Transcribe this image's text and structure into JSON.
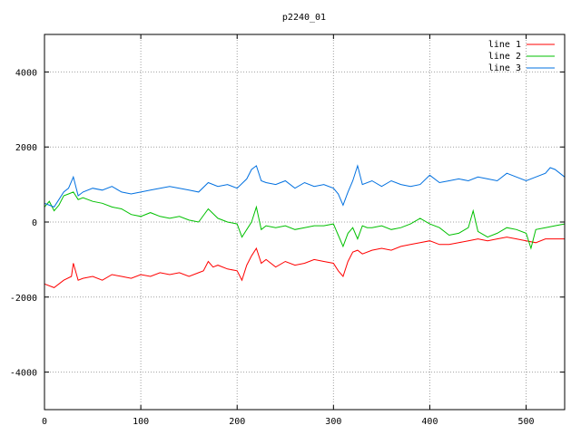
{
  "chart_data": {
    "type": "line",
    "title": "p2240_01",
    "xlabel": "",
    "ylabel": "",
    "xlim": [
      0,
      540
    ],
    "ylim": [
      -5000,
      5000
    ],
    "xticks": [
      0,
      100,
      200,
      300,
      400,
      500
    ],
    "yticks": [
      -4000,
      -2000,
      0,
      2000,
      4000
    ],
    "grid": true,
    "legend_position": "top-right",
    "series": [
      {
        "name": "line 1",
        "color": "#ff0000",
        "x": [
          0,
          10,
          20,
          28,
          30,
          35,
          40,
          50,
          60,
          70,
          80,
          90,
          100,
          110,
          120,
          130,
          140,
          150,
          160,
          165,
          170,
          175,
          180,
          190,
          200,
          205,
          210,
          215,
          220,
          225,
          230,
          240,
          250,
          260,
          270,
          280,
          290,
          300,
          305,
          310,
          315,
          320,
          325,
          330,
          340,
          350,
          360,
          370,
          380,
          390,
          400,
          410,
          420,
          430,
          440,
          450,
          460,
          470,
          480,
          490,
          500,
          510,
          520,
          530,
          540
        ],
        "y": [
          -1650,
          -1750,
          -1550,
          -1450,
          -1100,
          -1550,
          -1500,
          -1450,
          -1550,
          -1400,
          -1450,
          -1500,
          -1400,
          -1450,
          -1350,
          -1400,
          -1350,
          -1450,
          -1350,
          -1300,
          -1050,
          -1200,
          -1150,
          -1250,
          -1300,
          -1550,
          -1150,
          -900,
          -700,
          -1100,
          -1000,
          -1200,
          -1050,
          -1150,
          -1100,
          -1000,
          -1050,
          -1100,
          -1300,
          -1450,
          -1050,
          -800,
          -750,
          -850,
          -750,
          -700,
          -750,
          -650,
          -600,
          -550,
          -500,
          -600,
          -600,
          -550,
          -500,
          -450,
          -500,
          -450,
          -400,
          -450,
          -500,
          -550,
          -450,
          -450,
          -450
        ]
      },
      {
        "name": "line 2",
        "color": "#00c000",
        "x": [
          0,
          5,
          10,
          15,
          20,
          25,
          30,
          35,
          40,
          50,
          60,
          70,
          80,
          90,
          100,
          110,
          120,
          130,
          140,
          150,
          160,
          170,
          180,
          190,
          200,
          205,
          210,
          215,
          220,
          225,
          230,
          240,
          250,
          260,
          270,
          280,
          290,
          300,
          305,
          310,
          315,
          320,
          325,
          330,
          335,
          340,
          350,
          360,
          370,
          380,
          390,
          400,
          410,
          420,
          430,
          440,
          445,
          450,
          460,
          470,
          480,
          490,
          500,
          505,
          510,
          520,
          530,
          540
        ],
        "y": [
          400,
          550,
          300,
          450,
          700,
          750,
          800,
          600,
          650,
          550,
          500,
          400,
          350,
          200,
          150,
          250,
          150,
          100,
          150,
          50,
          0,
          350,
          100,
          0,
          -50,
          -400,
          -200,
          0,
          400,
          -200,
          -100,
          -150,
          -100,
          -200,
          -150,
          -100,
          -100,
          -50,
          -350,
          -650,
          -300,
          -150,
          -450,
          -100,
          -150,
          -150,
          -100,
          -200,
          -150,
          -50,
          100,
          -50,
          -150,
          -350,
          -300,
          -150,
          300,
          -250,
          -400,
          -300,
          -150,
          -200,
          -300,
          -700,
          -200,
          -150,
          -100,
          -50
        ]
      },
      {
        "name": "line 3",
        "color": "#0070e0",
        "x": [
          0,
          5,
          10,
          15,
          20,
          25,
          30,
          35,
          40,
          50,
          60,
          70,
          80,
          90,
          100,
          110,
          120,
          130,
          140,
          150,
          160,
          170,
          180,
          190,
          200,
          210,
          215,
          220,
          225,
          230,
          240,
          250,
          260,
          270,
          280,
          290,
          300,
          305,
          310,
          315,
          320,
          325,
          330,
          340,
          350,
          360,
          370,
          380,
          390,
          400,
          410,
          420,
          430,
          440,
          450,
          460,
          470,
          480,
          490,
          500,
          510,
          520,
          525,
          530,
          540
        ],
        "y": [
          500,
          450,
          400,
          600,
          800,
          900,
          1200,
          700,
          800,
          900,
          850,
          950,
          800,
          750,
          800,
          850,
          900,
          950,
          900,
          850,
          800,
          1050,
          950,
          1000,
          900,
          1150,
          1400,
          1500,
          1100,
          1050,
          1000,
          1100,
          900,
          1050,
          950,
          1000,
          900,
          750,
          450,
          800,
          1100,
          1500,
          1000,
          1100,
          950,
          1100,
          1000,
          950,
          1000,
          1250,
          1050,
          1100,
          1150,
          1100,
          1200,
          1150,
          1100,
          1300,
          1200,
          1100,
          1200,
          1300,
          1450,
          1400,
          1200
        ]
      }
    ]
  }
}
